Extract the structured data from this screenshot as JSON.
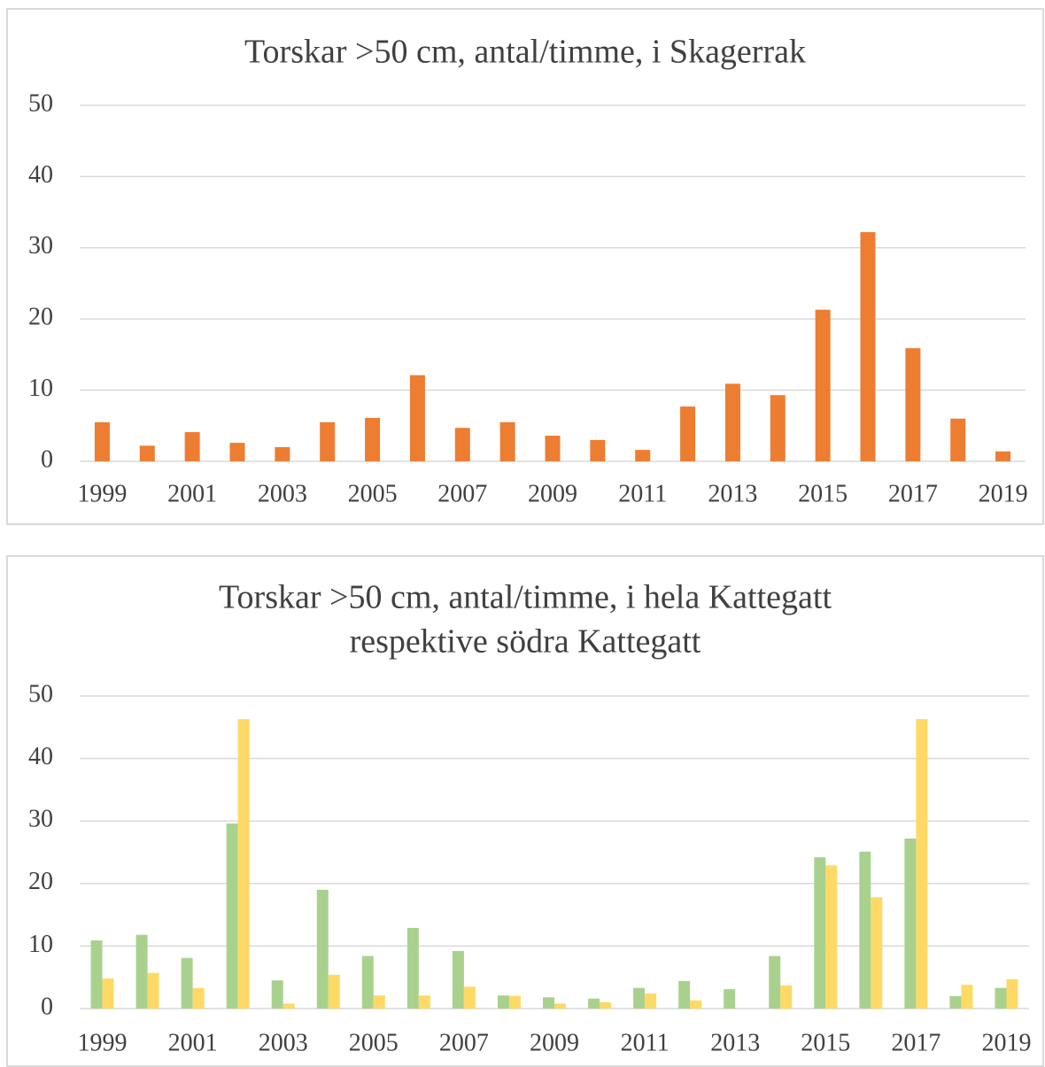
{
  "chart_data": [
    {
      "type": "bar",
      "title": [
        "Torskar >50 cm, antal/timme, i Skagerrak"
      ],
      "categories": [
        "1999",
        null,
        "2001",
        null,
        "2003",
        null,
        "2005",
        null,
        "2007",
        null,
        "2009",
        null,
        "2011",
        null,
        "2013",
        null,
        "2015",
        null,
        "2017",
        null,
        "2019"
      ],
      "series": [
        {
          "color": "#ed7d31",
          "values": [
            5.5,
            2.2,
            4.1,
            2.6,
            2.0,
            5.5,
            6.1,
            12.1,
            4.7,
            5.5,
            3.6,
            3.0,
            1.6,
            7.7,
            10.9,
            9.3,
            21.3,
            32.2,
            15.9,
            6.0,
            1.4
          ]
        }
      ],
      "ylim": [
        0,
        50
      ],
      "yticks": [
        0,
        10,
        20,
        30,
        40,
        50
      ],
      "grid": true
    },
    {
      "type": "bar",
      "title": [
        "Torskar >50 cm, antal/timme, i hela Kattegatt",
        "respektive södra Kattegatt"
      ],
      "categories": [
        "1999",
        null,
        "2001",
        null,
        "2003",
        null,
        "2005",
        null,
        "2007",
        null,
        "2009",
        null,
        "2011",
        null,
        "2013",
        null,
        "2015",
        null,
        "2017",
        null,
        "2019"
      ],
      "series": [
        {
          "color": "#a9d18e",
          "values": [
            10.9,
            11.8,
            8.1,
            29.6,
            4.5,
            19.0,
            8.4,
            12.9,
            9.2,
            2.1,
            1.8,
            1.6,
            3.3,
            4.4,
            3.1,
            8.4,
            24.2,
            25.1,
            27.2,
            2.0,
            3.3
          ]
        },
        {
          "color": "#ffd966",
          "values": [
            4.8,
            5.7,
            3.3,
            46.3,
            0.8,
            5.4,
            2.1,
            2.1,
            3.5,
            2.0,
            0.8,
            1.0,
            2.4,
            1.3,
            null,
            3.7,
            22.9,
            17.8,
            46.3,
            3.8,
            4.7
          ]
        }
      ],
      "ylim": [
        0,
        50
      ],
      "yticks": [
        0,
        10,
        20,
        30,
        40,
        50
      ],
      "grid": true
    }
  ]
}
